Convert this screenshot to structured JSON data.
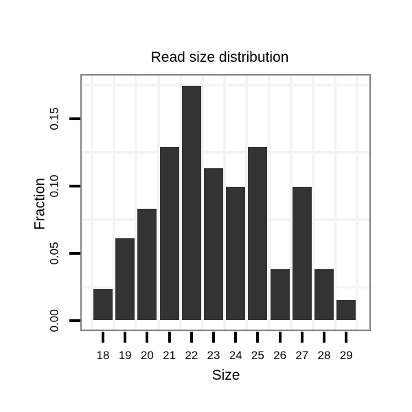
{
  "chart_data": {
    "type": "bar",
    "title": "Read size distribution",
    "xlabel": "Size",
    "ylabel": "Fraction",
    "categories": [
      "18",
      "19",
      "20",
      "21",
      "22",
      "23",
      "24",
      "25",
      "26",
      "27",
      "28",
      "29"
    ],
    "values": [
      0.023,
      0.061,
      0.083,
      0.129,
      0.174,
      0.113,
      0.099,
      0.129,
      0.038,
      0.099,
      0.038,
      0.015
    ],
    "y_tick_labels": [
      "0.00",
      "0.05",
      "0.10",
      "0.15"
    ],
    "y_tick_values": [
      0,
      0.05,
      0.1,
      0.15
    ],
    "minor_grid_y": [
      0.025,
      0.075,
      0.125,
      0.175
    ],
    "ylim": [
      -0.007,
      0.182
    ],
    "grid": "minor-lines-only",
    "legend": "none",
    "colors": {
      "bar": "#333333",
      "panel_border": "#808080",
      "gridline": "#f4f4f4",
      "tick": "#000000",
      "text": "#000000",
      "background": "#ffffff"
    }
  }
}
